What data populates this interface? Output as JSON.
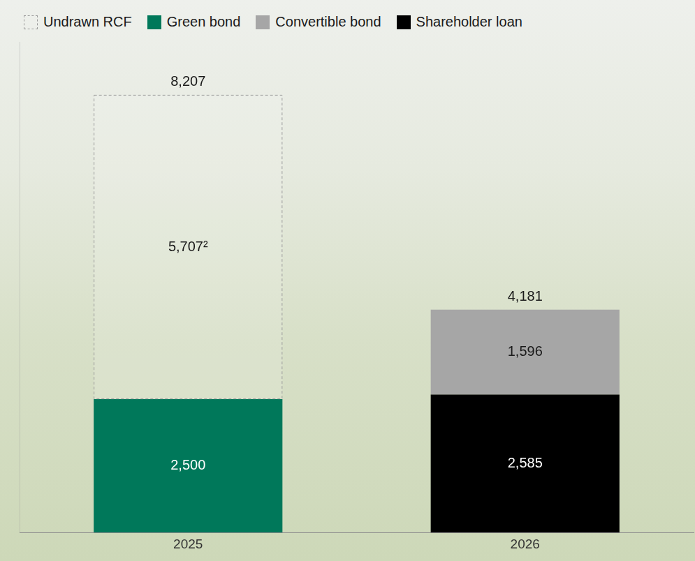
{
  "chart_data": {
    "type": "bar",
    "categories": [
      "2025",
      "2026"
    ],
    "series": [
      {
        "name": "Undrawn RCF",
        "color": "#9a9a9a",
        "line_style": "dashed",
        "values": [
          5707,
          null
        ],
        "value_labels": [
          "5,707²",
          null
        ]
      },
      {
        "name": "Green bond",
        "color": "#00785a",
        "values": [
          2500,
          null
        ],
        "value_labels": [
          "2,500",
          null
        ]
      },
      {
        "name": "Convertible bond",
        "color": "#a6a6a6",
        "values": [
          null,
          1596
        ],
        "value_labels": [
          null,
          "1,596"
        ]
      },
      {
        "name": "Shareholder loan",
        "color": "#000000",
        "values": [
          null,
          2585
        ],
        "value_labels": [
          null,
          "2,585"
        ]
      }
    ],
    "totals": [
      8207,
      4181
    ],
    "total_labels": [
      "8,207",
      "4,181"
    ],
    "stacked": true,
    "data_labels": true,
    "grid": false,
    "legend": "top",
    "tick_labels": "x",
    "ylim": [
      0,
      9200
    ]
  }
}
